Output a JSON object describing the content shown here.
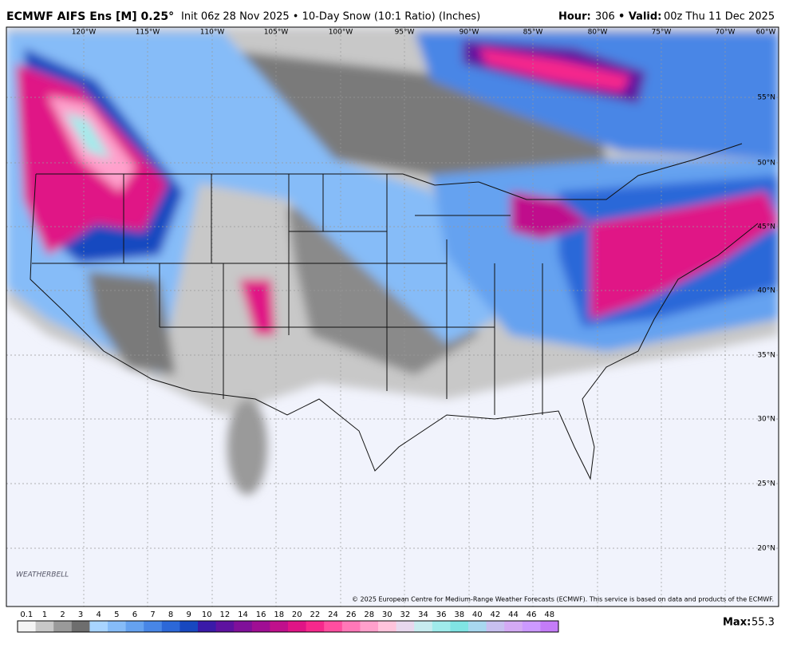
{
  "header": {
    "title": "ECMWF AIFS Ens [M] 0.25°",
    "subtitle": "Init 06z 28 Nov 2025 • 10-Day Snow (10:1 Ratio) (Inches)",
    "hour_label": "Hour:",
    "hour": "306",
    "valid_label": "• Valid:",
    "valid": "00z Thu 11 Dec 2025"
  },
  "map": {
    "longitudes": [
      "120°W",
      "115°W",
      "110°W",
      "105°W",
      "100°W",
      "95°W",
      "90°W",
      "85°W",
      "80°W",
      "75°W",
      "70°W",
      "60°W"
    ],
    "latitudes": [
      "55°N",
      "50°N",
      "45°N",
      "40°N",
      "35°N",
      "30°N",
      "25°N",
      "20°N"
    ],
    "copyright": "© 2025 European Centre for Medium-Range Weather Forecasts (ECMWF). This service is based on data and products of the ECMWF.",
    "logo": "WEATHERBELL"
  },
  "colorbar": {
    "labels": [
      "0.1",
      "1",
      "2",
      "3",
      "4",
      "5",
      "6",
      "7",
      "8",
      "9",
      "10",
      "12",
      "14",
      "16",
      "18",
      "20",
      "22",
      "24",
      "26",
      "28",
      "30",
      "32",
      "34",
      "36",
      "38",
      "40",
      "42",
      "44",
      "46",
      "48"
    ],
    "colors": [
      "#f4f4f4",
      "#c8c8c8",
      "#9a9a9a",
      "#6e6e6e",
      "#a8d4ff",
      "#86bcf8",
      "#65a2f0",
      "#4886e6",
      "#2c68d8",
      "#1848c0",
      "#3a1aa8",
      "#5e12a0",
      "#80109a",
      "#a00e94",
      "#c0108c",
      "#e01486",
      "#f6288c",
      "#ff4ea0",
      "#ff78b8",
      "#ffa0cc",
      "#ffc4dc",
      "#e8d8ee",
      "#c8ecf0",
      "#a0ecec",
      "#80e4e4",
      "#a8d8f0",
      "#c8c0f0",
      "#d4aaf4",
      "#cc99ff",
      "#c47cf8"
    ]
  },
  "max": {
    "label": "Max:",
    "value": "55.3"
  }
}
